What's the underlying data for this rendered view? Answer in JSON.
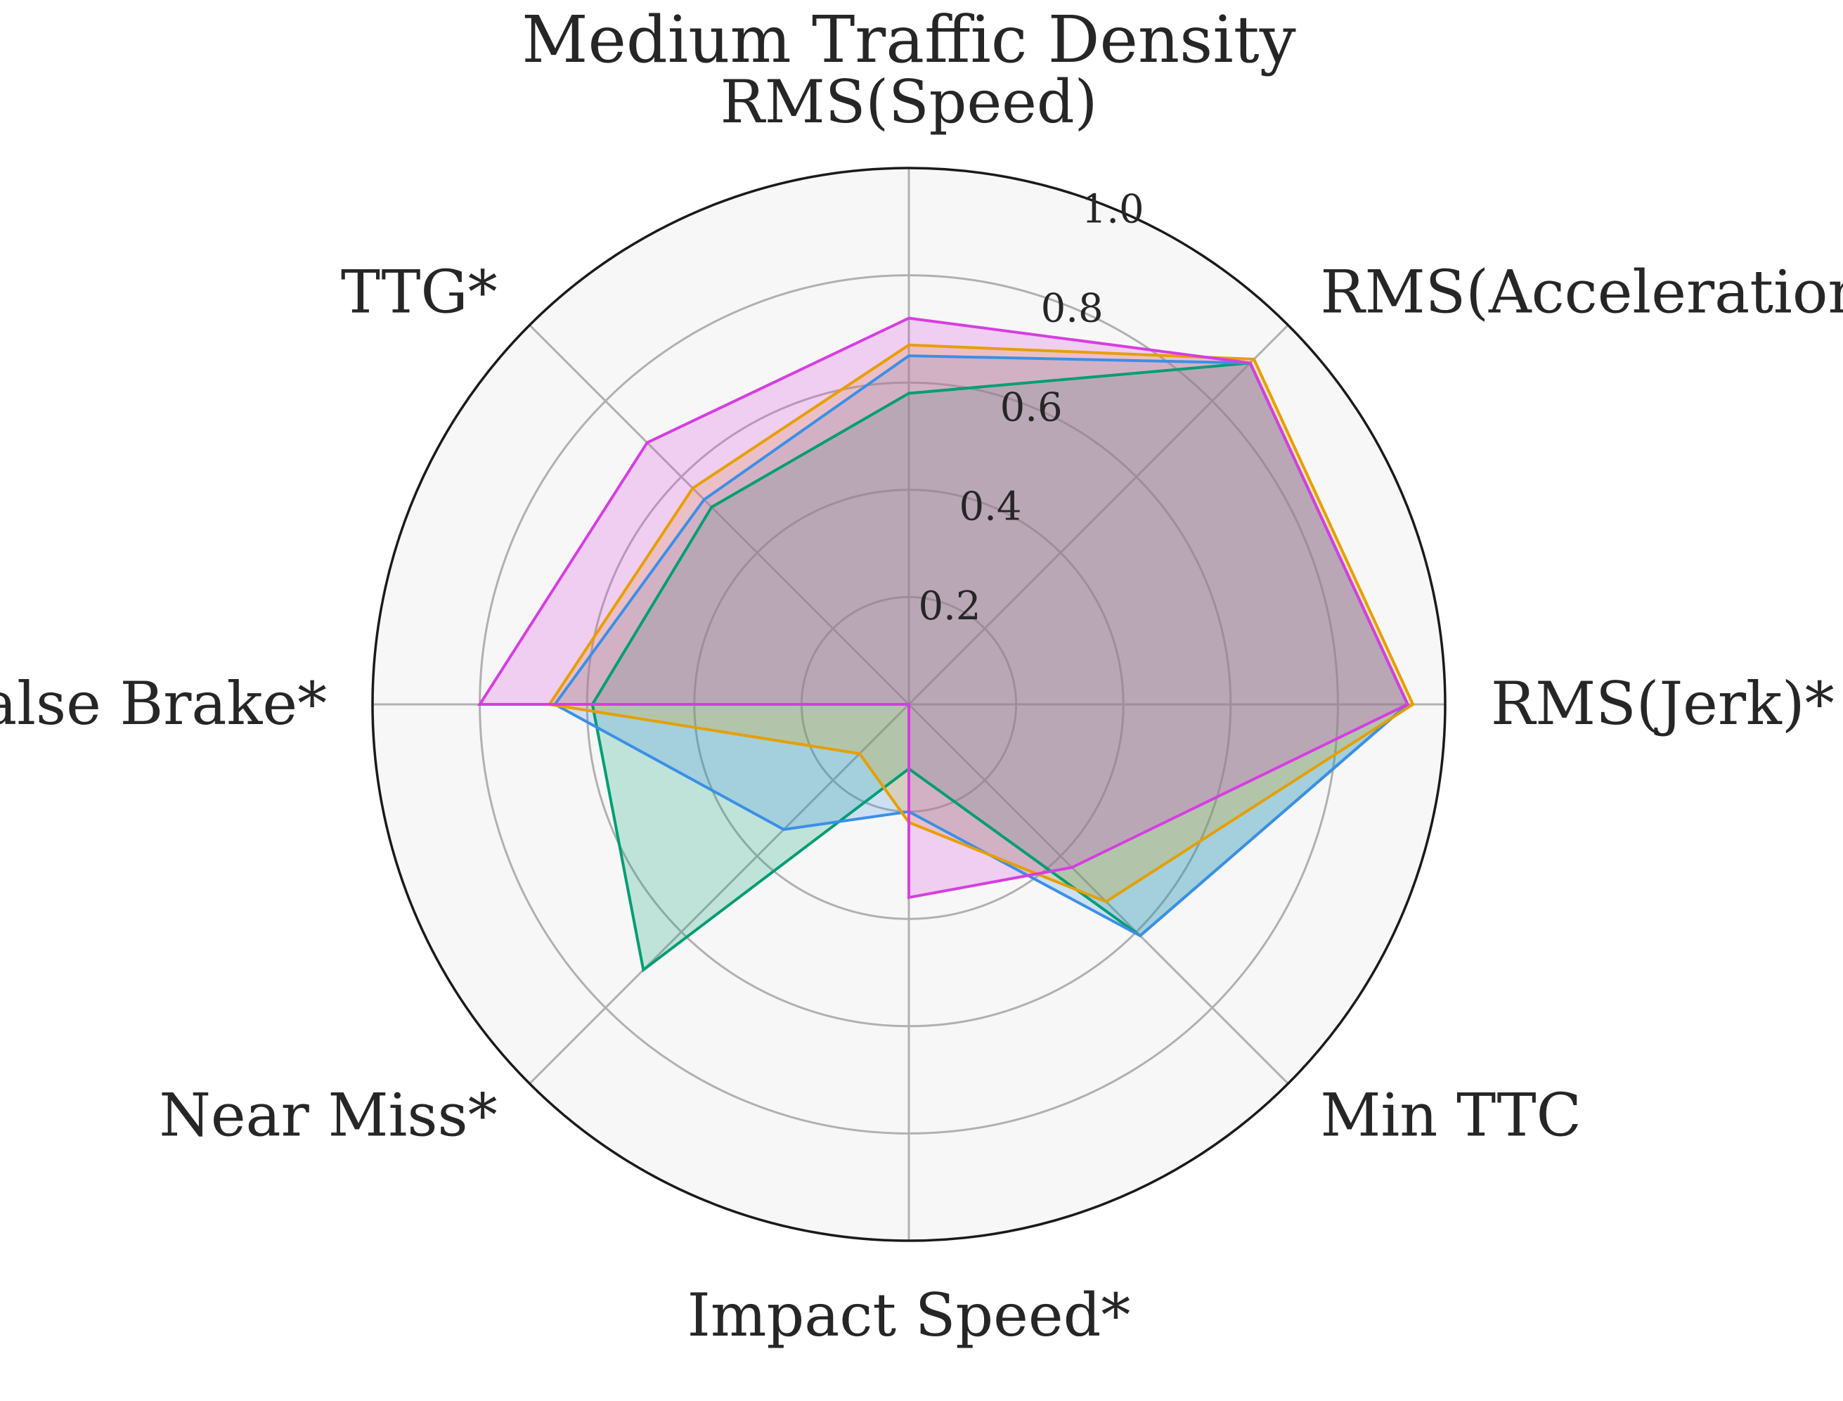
{
  "chart_data": {
    "type": "radar",
    "title": "Medium Traffic Density",
    "axes": [
      "RMS(Speed)",
      "RMS(Acceleration)*",
      "RMS(Jerk)*",
      "Min TTC",
      "Impact Speed*",
      "Near Miss*",
      "False Brake*",
      "TTG*"
    ],
    "radial_ticks": [
      "0.2",
      "0.4",
      "0.6",
      "0.8",
      "1.0"
    ],
    "radial_tick_values": [
      0.2,
      0.4,
      0.6,
      0.8,
      1.0
    ],
    "rlim": [
      0,
      1.0
    ],
    "grid": true,
    "legend": null,
    "series": [
      {
        "color": "#009e73",
        "values": [
          0.58,
          0.9,
          0.93,
          0.61,
          0.12,
          0.7,
          0.59,
          0.52
        ]
      },
      {
        "color": "#3b8fe6",
        "values": [
          0.65,
          0.9,
          0.93,
          0.61,
          0.2,
          0.33,
          0.66,
          0.54
        ]
      },
      {
        "color": "#e69f00",
        "values": [
          0.67,
          0.91,
          0.94,
          0.52,
          0.22,
          0.13,
          0.67,
          0.57
        ]
      },
      {
        "color": "#d63ee0",
        "values": [
          0.72,
          0.9,
          0.93,
          0.43,
          0.36,
          0.0,
          0.8,
          0.69
        ]
      }
    ]
  }
}
